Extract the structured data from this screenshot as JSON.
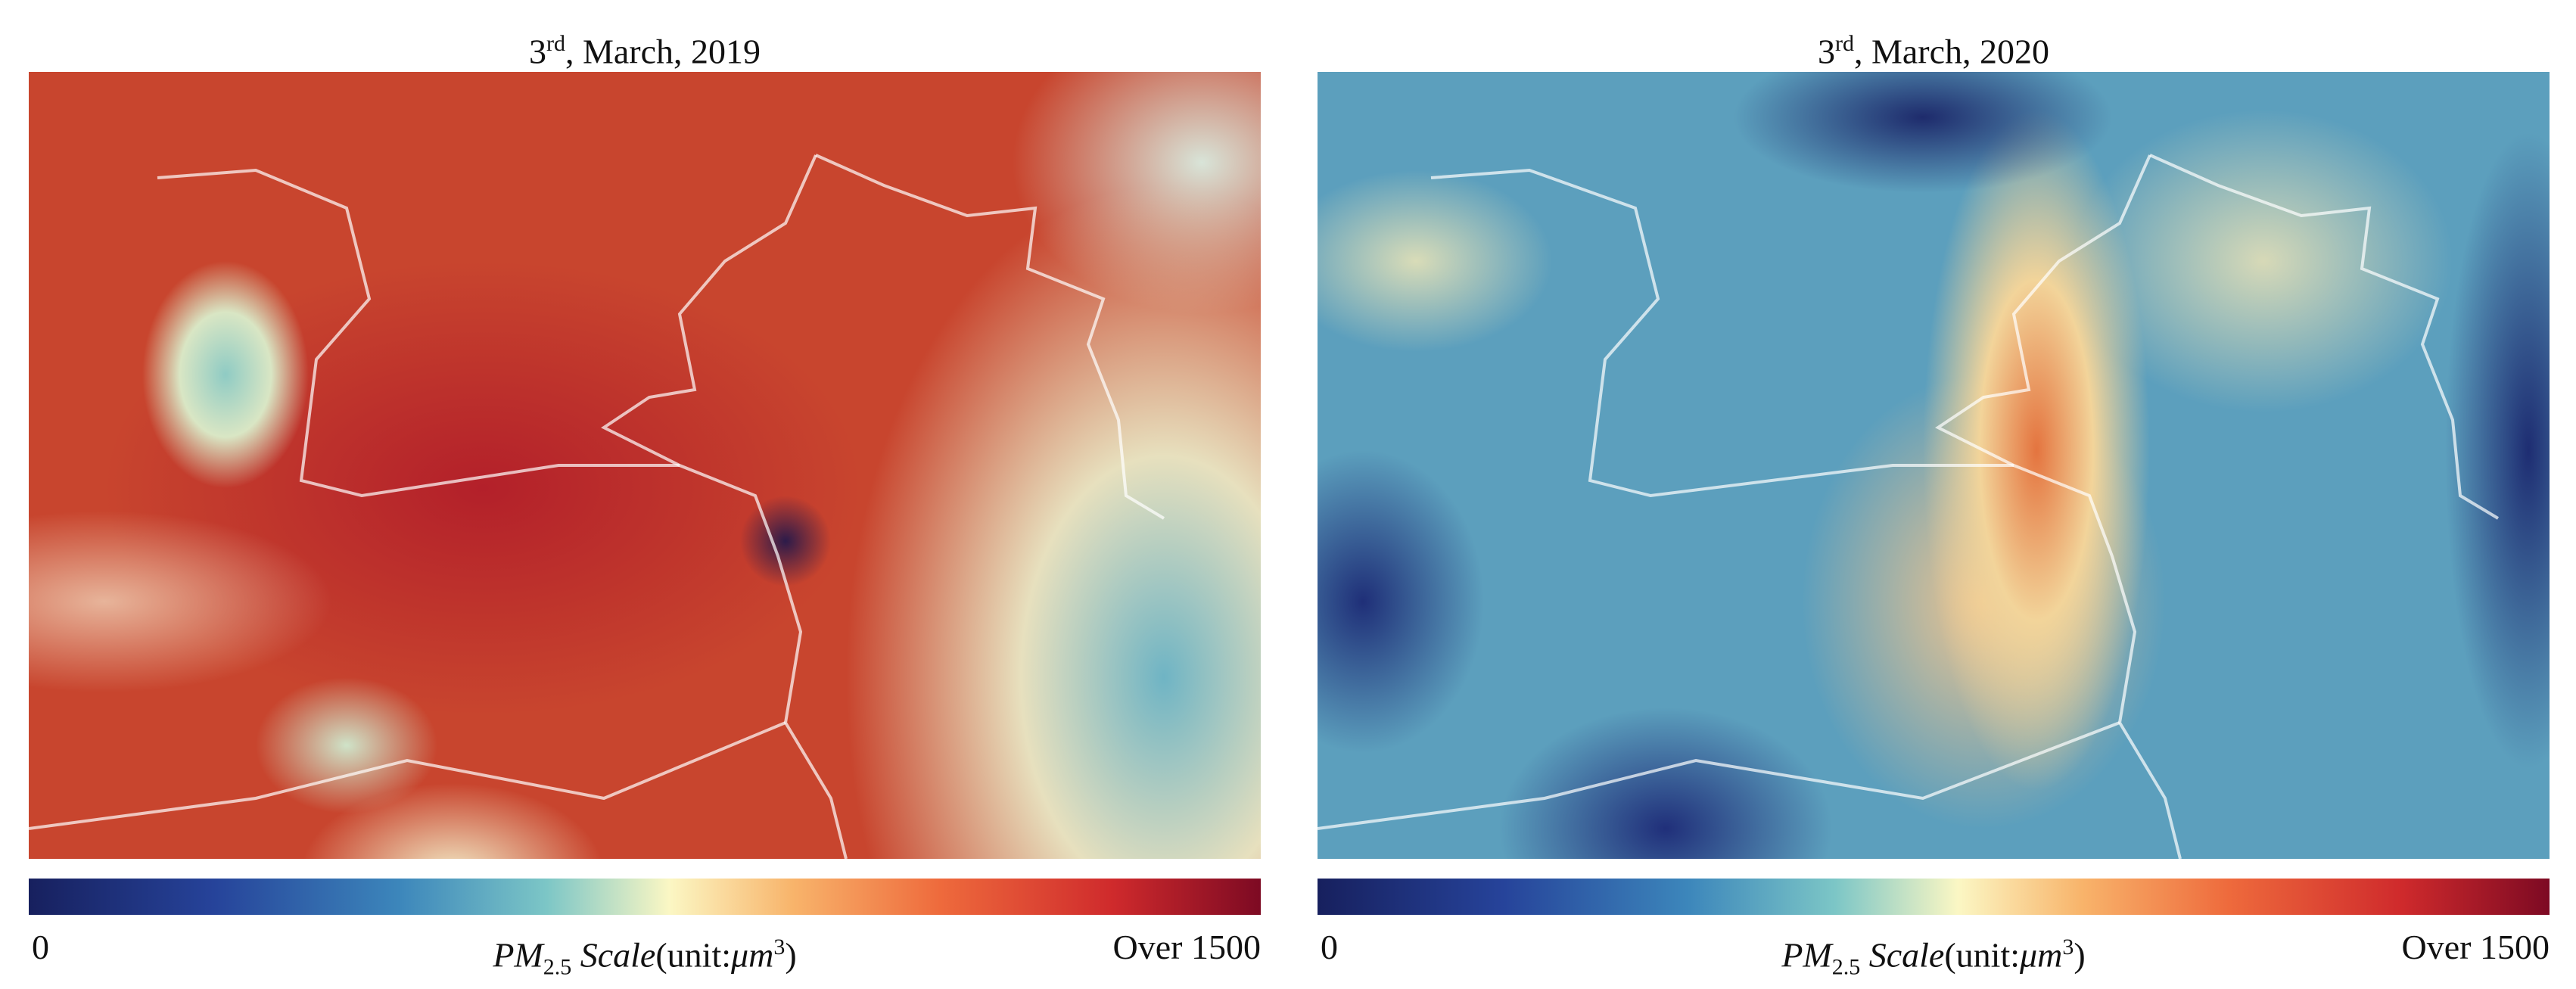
{
  "panels": [
    {
      "title": [
        "3",
        "rd",
        ", March, 2019"
      ],
      "scale": {
        "min": "0",
        "max": "Over 1500",
        "label": [
          "PM",
          "2.5",
          " Scale",
          "(unit:",
          "μm",
          "3",
          ")"
        ]
      }
    },
    {
      "title": [
        "3",
        "rd",
        ", March, 2020"
      ],
      "scale": {
        "min": "0",
        "max": "Over 1500",
        "label": [
          "PM",
          "2.5",
          " Scale",
          "(unit:",
          "μm",
          "3",
          ")"
        ]
      }
    }
  ]
}
